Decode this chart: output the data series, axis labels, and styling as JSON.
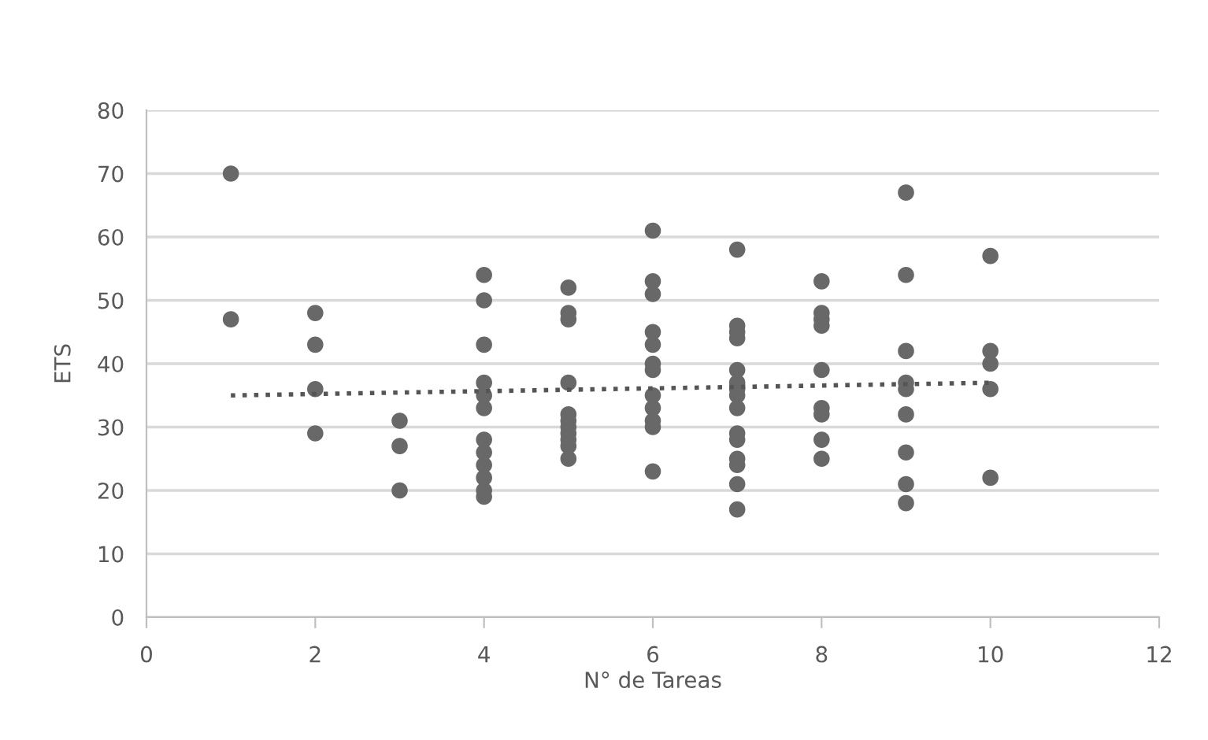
{
  "chart_data": {
    "type": "scatter",
    "xlabel": "N° de Tareas",
    "ylabel": "ETS",
    "xlim": [
      0,
      12
    ],
    "xticks": [
      0,
      2,
      4,
      6,
      8,
      10,
      12
    ],
    "ylim": [
      0,
      80
    ],
    "yticks": [
      0,
      10,
      20,
      30,
      40,
      50,
      60,
      70,
      80
    ],
    "grid": "y",
    "marker": "circle",
    "series": [
      {
        "color": "#686868",
        "x": [
          1,
          1,
          2,
          2,
          2,
          2,
          3,
          3,
          3,
          4,
          4,
          4,
          4,
          4,
          4,
          4,
          4,
          4,
          4,
          4,
          4,
          5,
          5,
          5,
          5,
          5,
          5,
          5,
          5,
          5,
          5,
          5,
          6,
          6,
          6,
          6,
          6,
          6,
          6,
          6,
          6,
          6,
          6,
          6,
          7,
          7,
          7,
          7,
          7,
          7,
          7,
          7,
          7,
          7,
          7,
          7,
          7,
          7,
          7,
          8,
          8,
          8,
          8,
          8,
          8,
          8,
          8,
          8,
          9,
          9,
          9,
          9,
          9,
          9,
          9,
          9,
          9,
          10,
          10,
          10,
          10,
          10
        ],
        "values": [
          70,
          47,
          48,
          43,
          36,
          29,
          31,
          27,
          20,
          54,
          50,
          43,
          37,
          35,
          33,
          28,
          26,
          24,
          22,
          20,
          19,
          52,
          48,
          47,
          37,
          32,
          31,
          30,
          29,
          28,
          27,
          25,
          61,
          53,
          51,
          45,
          43,
          40,
          39,
          35,
          33,
          31,
          30,
          23,
          58,
          46,
          45,
          44,
          39,
          37,
          36,
          35,
          33,
          29,
          28,
          25,
          24,
          21,
          17,
          53,
          48,
          47,
          46,
          39,
          33,
          32,
          28,
          25,
          67,
          54,
          42,
          37,
          36,
          32,
          26,
          21,
          18,
          57,
          42,
          40,
          36,
          22
        ]
      },
      {
        "type": "line",
        "color": "#555555",
        "line_style": "dotted",
        "marker": "none",
        "x": [
          1,
          10
        ],
        "values": [
          35,
          37
        ]
      }
    ]
  }
}
